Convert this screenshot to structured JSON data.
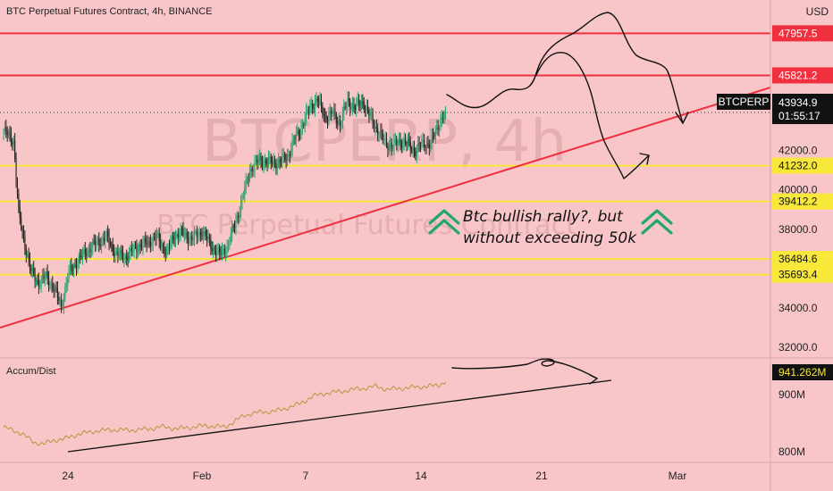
{
  "header": {
    "title": "BTC Perpetual Futures Contract, 4h, BINANCE",
    "currency": "USD"
  },
  "watermark": {
    "symbol": "BTCPERP, 4h",
    "name": "BTC Perpetual Futures Contract"
  },
  "colors": {
    "background": "#f8c6c8",
    "red_line": "#f0303f",
    "yellow_line": "#f7e839",
    "up": "#23a66f",
    "down": "#222222",
    "accum": "#b5963c"
  },
  "annotation": {
    "line1": "Btc bullish rally?, but",
    "line2": "without exceeding 50k"
  },
  "indicator": {
    "label": "Accum/Dist",
    "value": "941.262M",
    "axis_ticks": [
      "900M",
      "800M"
    ]
  },
  "price_tags": {
    "symbol": "BTCPERP",
    "price": "43934.9",
    "countdown": "01:55:17"
  },
  "chart_data": {
    "type": "candlestick",
    "y_axis_ticks": [
      42000,
      40000,
      38000,
      34000,
      32000
    ],
    "y_axis_tick_labels": [
      "42000.0",
      "40000.0",
      "38000.0",
      "34000.0",
      "32000.0"
    ],
    "x_axis_ticks": [
      "24",
      "Feb",
      "7",
      "14",
      "21",
      "Mar"
    ],
    "ylim": [
      31500,
      49200
    ],
    "horizontal_levels": [
      {
        "value": 47957.5,
        "label": "47957.5",
        "color": "red"
      },
      {
        "value": 45821.2,
        "label": "45821.2",
        "color": "red"
      },
      {
        "value": 41232.0,
        "label": "41232.0",
        "color": "yellow"
      },
      {
        "value": 39412.2,
        "label": "39412.2",
        "color": "yellow"
      },
      {
        "value": 36484.6,
        "label": "36484.6",
        "color": "yellow"
      },
      {
        "value": 35693.4,
        "label": "35693.4",
        "color": "yellow"
      }
    ],
    "close_anchors": [
      [
        0,
        43000
      ],
      [
        8,
        42500
      ],
      [
        12,
        38800
      ],
      [
        16,
        37500
      ],
      [
        22,
        35800
      ],
      [
        28,
        35300
      ],
      [
        34,
        35600
      ],
      [
        40,
        35000
      ],
      [
        46,
        34100
      ],
      [
        52,
        35800
      ],
      [
        58,
        36300
      ],
      [
        66,
        36900
      ],
      [
        74,
        37300
      ],
      [
        82,
        37600
      ],
      [
        90,
        36700
      ],
      [
        98,
        36600
      ],
      [
        106,
        37100
      ],
      [
        114,
        37300
      ],
      [
        122,
        37600
      ],
      [
        130,
        36800
      ],
      [
        136,
        37700
      ],
      [
        142,
        37800
      ],
      [
        150,
        37500
      ],
      [
        158,
        37900
      ],
      [
        166,
        37100
      ],
      [
        172,
        36700
      ],
      [
        178,
        37100
      ],
      [
        184,
        38200
      ],
      [
        190,
        39500
      ],
      [
        196,
        41000
      ],
      [
        204,
        41500
      ],
      [
        212,
        41400
      ],
      [
        220,
        41400
      ],
      [
        226,
        41700
      ],
      [
        232,
        42600
      ],
      [
        238,
        43300
      ],
      [
        244,
        44200
      ],
      [
        250,
        44600
      ],
      [
        256,
        43700
      ],
      [
        262,
        43900
      ],
      [
        268,
        43400
      ],
      [
        274,
        44500
      ],
      [
        280,
        44200
      ],
      [
        286,
        44500
      ],
      [
        292,
        43700
      ],
      [
        298,
        43000
      ],
      [
        304,
        42400
      ],
      [
        310,
        42200
      ],
      [
        316,
        42500
      ],
      [
        322,
        42300
      ],
      [
        328,
        42000
      ],
      [
        334,
        42400
      ],
      [
        340,
        42300
      ],
      [
        346,
        43300
      ],
      [
        352,
        43934.9
      ]
    ],
    "accum_dist": {
      "label": "Accum/Dist",
      "last": 941.262,
      "anchors": [
        [
          0,
          850
        ],
        [
          14,
          838
        ],
        [
          24,
          820
        ],
        [
          32,
          816
        ],
        [
          40,
          824
        ],
        [
          48,
          826
        ],
        [
          58,
          835
        ],
        [
          72,
          842
        ],
        [
          86,
          845
        ],
        [
          100,
          844
        ],
        [
          114,
          846
        ],
        [
          126,
          851
        ],
        [
          138,
          847
        ],
        [
          150,
          850
        ],
        [
          160,
          853
        ],
        [
          168,
          852
        ],
        [
          176,
          850
        ],
        [
          184,
          862
        ],
        [
          192,
          874
        ],
        [
          200,
          879
        ],
        [
          210,
          881
        ],
        [
          220,
          884
        ],
        [
          228,
          891
        ],
        [
          236,
          897
        ],
        [
          246,
          912
        ],
        [
          256,
          918
        ],
        [
          266,
          921
        ],
        [
          276,
          925
        ],
        [
          286,
          928
        ],
        [
          296,
          932
        ],
        [
          306,
          926
        ],
        [
          316,
          928
        ],
        [
          326,
          930
        ],
        [
          336,
          932
        ],
        [
          346,
          934
        ],
        [
          352,
          941.262
        ]
      ]
    }
  }
}
